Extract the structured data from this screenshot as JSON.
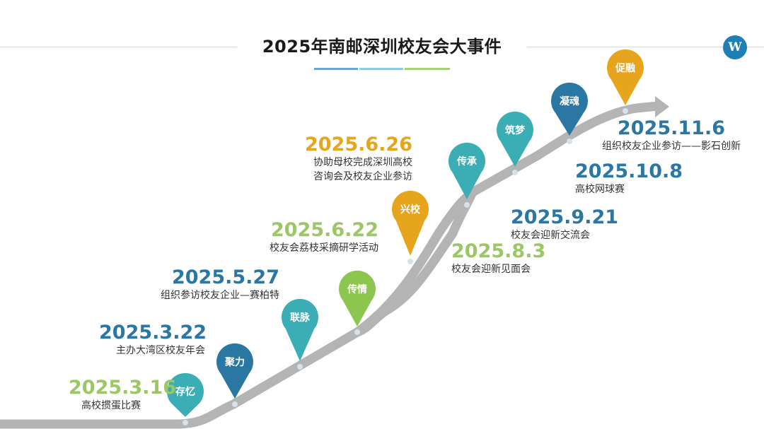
{
  "title": "2025年南邮深圳校友会大事件",
  "logo_text": "W",
  "title_underline_colors": [
    "#6aa5cc",
    "#8ccbe0",
    "#a6d07a"
  ],
  "road_color": "#b4b4b4",
  "road_dot_color": "#d7e1ea",
  "pins": [
    {
      "label": "存忆",
      "color": "#3aaeb4"
    },
    {
      "label": "聚力",
      "color": "#2a77a3"
    },
    {
      "label": "联脉",
      "color": "#3aaeb4"
    },
    {
      "label": "传情",
      "color": "#8cc64f"
    },
    {
      "label": "兴校",
      "color": "#e7a51e"
    },
    {
      "label": "传承",
      "color": "#3aaeb4"
    },
    {
      "label": "筑梦",
      "color": "#3aaeb4"
    },
    {
      "label": "凝魂",
      "color": "#2a77a3"
    },
    {
      "label": "促融",
      "color": "#e7a51e"
    }
  ],
  "events": [
    {
      "date": "2025.3.16",
      "desc": "高校掼蛋比赛",
      "color": "#9cc766"
    },
    {
      "date": "2025.3.22",
      "desc": "主办大湾区校友年会",
      "color": "#2a77a3"
    },
    {
      "date": "2025.5.27",
      "desc": "组织参访校友企业—赛柏特",
      "color": "#2a77a3"
    },
    {
      "date": "2025.6.22",
      "desc": "校友会荔枝采摘研学活动",
      "color": "#9cc766"
    },
    {
      "date": "2025.6.26",
      "desc": "协助母校完成深圳高校",
      "desc2": "咨询会及校友企业参访",
      "color": "#e7a51e"
    },
    {
      "date": "2025.8.3",
      "desc": "校友会迎新见面会",
      "color": "#9cc766"
    },
    {
      "date": "2025.9.21",
      "desc": "校友会迎新交流会",
      "color": "#2a77a3"
    },
    {
      "date": "2025.10.8",
      "desc": "高校网球赛",
      "color": "#2a77a3"
    },
    {
      "date": "2025.11.6",
      "desc": "组织校友企业参访——影石创新",
      "color": "#2a77a3"
    }
  ]
}
